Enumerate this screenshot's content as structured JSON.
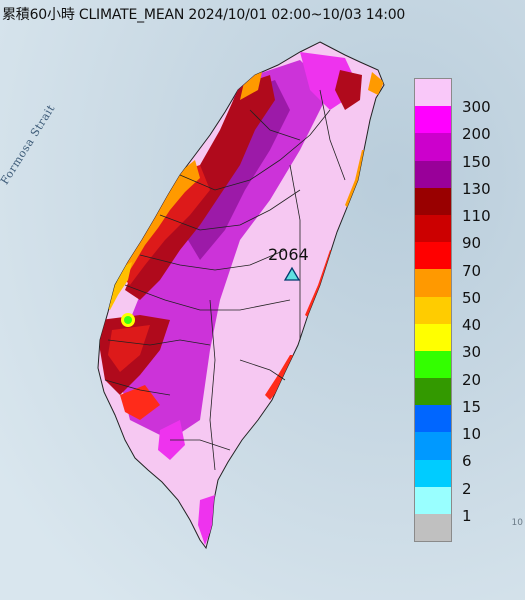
{
  "title": "累積60小時 CLIMATE_MEAN 2024/10/01 02:00~10/03 14:00",
  "sea_labels": {
    "strait": "Formosa Strait",
    "edge": "10"
  },
  "max_station": {
    "value": "2064",
    "marker_color": "#5fe0e0"
  },
  "legend": [
    {
      "label": "300",
      "color": "#f9c8f9"
    },
    {
      "label": "200",
      "color": "#ff00ff"
    },
    {
      "label": "150",
      "color": "#cc00cc"
    },
    {
      "label": "130",
      "color": "#990099"
    },
    {
      "label": "110",
      "color": "#990000"
    },
    {
      "label": "90",
      "color": "#cc0000"
    },
    {
      "label": "70",
      "color": "#ff0000"
    },
    {
      "label": "50",
      "color": "#ff9900"
    },
    {
      "label": "40",
      "color": "#ffcc00"
    },
    {
      "label": "30",
      "color": "#ffff00"
    },
    {
      "label": "20",
      "color": "#33ff00"
    },
    {
      "label": "15",
      "color": "#339900"
    },
    {
      "label": "10",
      "color": "#0066ff"
    },
    {
      "label": "6",
      "color": "#0099ff"
    },
    {
      "label": "2",
      "color": "#00ccff"
    },
    {
      "label": "1",
      "color": "#99ffff"
    },
    {
      "label": "",
      "color": "#c0c0c0"
    }
  ]
}
